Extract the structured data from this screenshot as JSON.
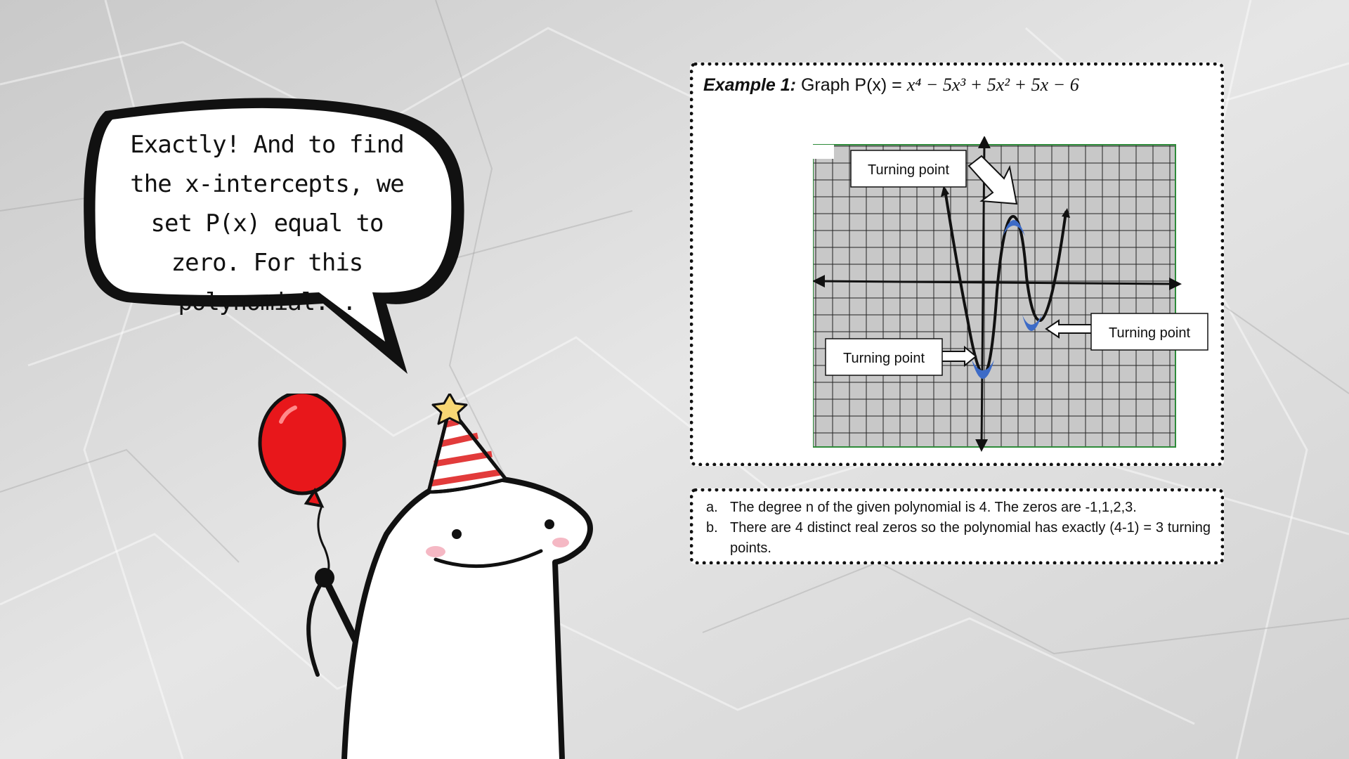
{
  "speech": {
    "text": "Exactly! And to find the x-intercepts, we set P(x) equal to zero. For this polynomial..."
  },
  "example": {
    "label": "Example 1:",
    "prefix": " Graph P(x) = ",
    "equation": "x⁴ − 5x³ + 5x² + 5x − 6",
    "callouts": {
      "top": "Turning point",
      "right": "Turning point",
      "left": "Turning point"
    }
  },
  "notes": [
    {
      "marker": "a.",
      "text": "The degree n of the given polynomial is 4. The zeros are -1,1,2,3."
    },
    {
      "marker": "b.",
      "text": "There are 4 distinct real zeros so the polynomial has exactly (4-1)  = 3 turning points."
    }
  ],
  "colors": {
    "balloon": "#e8171b",
    "hat_stripe": "#e23b3b",
    "star": "#f7d774",
    "turning_point_marker": "#3d6bc7",
    "grid_bg": "#c8c8c8",
    "grid_border": "#2e8b3a"
  },
  "icons": [
    "balloon-icon",
    "party-hat-icon",
    "star-icon"
  ]
}
